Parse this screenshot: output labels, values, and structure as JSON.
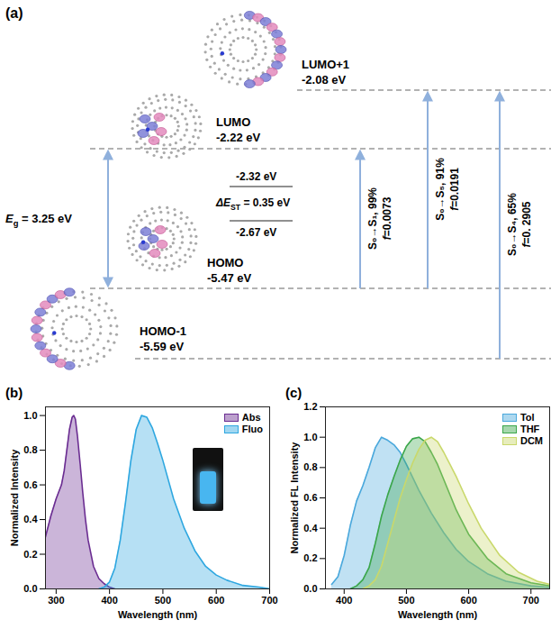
{
  "diagram": {
    "label": "(a)",
    "levels": [
      {
        "name": "LUMO+1",
        "energy": "-2.08 eV"
      },
      {
        "name": "LUMO",
        "energy": "-2.22 eV"
      },
      {
        "name": "HOMO",
        "energy": "-5.47 eV"
      },
      {
        "name": "HOMO-1",
        "energy": "-5.59 eV"
      }
    ],
    "gap": {
      "symbol": "E",
      "subscript": "g",
      "text": " = 3.25 eV"
    },
    "singlet_triplet": {
      "symbol": "ΔE",
      "subscript": "ST",
      "text": " = 0.35 eV",
      "upper": "-2.32 eV",
      "lower": "-2.67 eV"
    },
    "transitions": [
      {
        "from": "HOMO",
        "to": "LUMO",
        "label": "S₀→S₁, 99%",
        "strength": "f=0.0073"
      },
      {
        "from": "HOMO",
        "to": "LUMO+1",
        "label": "S₀→S₅, 91%",
        "strength": "f=0.0191"
      },
      {
        "from": "HOMO-1",
        "to": "LUMO+1",
        "label": "S₀→S₄, 65%",
        "strength": "f=0. 2905"
      }
    ]
  },
  "chart_data": [
    {
      "type": "area",
      "panel_label": "(b)",
      "x_label": "Wavelength (nm)",
      "y_label": "Normalized Intensity",
      "xlim": [
        280,
        700
      ],
      "xticks": [
        300,
        400,
        500,
        600,
        700
      ],
      "ylim": [
        0,
        1.05
      ],
      "yticks": [
        {
          "value": 0,
          "label": "0.0"
        },
        0.2,
        0.4,
        0.6,
        0.8,
        {
          "value": 1,
          "label": "1.0"
        }
      ],
      "legend": "top-right",
      "series": [
        {
          "name": "Abs",
          "color": "#6a2c91",
          "x": [
            280,
            290,
            300,
            305,
            310,
            315,
            320,
            325,
            330,
            333,
            336,
            340,
            345,
            350,
            355,
            360,
            370,
            380,
            390,
            400,
            410
          ],
          "values": [
            0.3,
            0.42,
            0.52,
            0.56,
            0.6,
            0.68,
            0.8,
            0.92,
            0.99,
            1.0,
            0.98,
            0.88,
            0.72,
            0.55,
            0.4,
            0.28,
            0.13,
            0.06,
            0.03,
            0.01,
            0.0
          ]
        },
        {
          "name": "Fluo",
          "color": "#2ea7e0",
          "x": [
            380,
            390,
            400,
            410,
            420,
            430,
            440,
            450,
            460,
            470,
            480,
            490,
            500,
            520,
            540,
            560,
            580,
            600,
            620,
            650,
            680,
            700
          ],
          "values": [
            0,
            0.01,
            0.04,
            0.12,
            0.28,
            0.5,
            0.74,
            0.92,
            1.0,
            0.99,
            0.93,
            0.84,
            0.74,
            0.52,
            0.35,
            0.22,
            0.13,
            0.08,
            0.05,
            0.02,
            0.01,
            0.0
          ]
        }
      ]
    },
    {
      "type": "area",
      "panel_label": "(c)",
      "x_label": "Wavelength (nm)",
      "y_label": "Normalized FL Intensity",
      "xlim": [
        370,
        730
      ],
      "xticks": [
        400,
        500,
        600,
        700
      ],
      "ylim": [
        0,
        1.2
      ],
      "yticks": [
        {
          "value": 0,
          "label": "0.0"
        },
        0.2,
        0.4,
        0.6,
        0.8,
        {
          "value": 1,
          "label": "1.0"
        },
        1.2
      ],
      "legend": "top-right",
      "series": [
        {
          "name": "Tol",
          "color": "#4aa8dc",
          "x": [
            380,
            390,
            400,
            410,
            420,
            430,
            440,
            450,
            460,
            470,
            480,
            490,
            500,
            520,
            540,
            560,
            580,
            600,
            630,
            660,
            700,
            730
          ],
          "values": [
            0.03,
            0.08,
            0.22,
            0.42,
            0.58,
            0.68,
            0.8,
            0.93,
            1.0,
            0.98,
            0.95,
            0.9,
            0.82,
            0.65,
            0.5,
            0.37,
            0.26,
            0.18,
            0.1,
            0.05,
            0.02,
            0.01
          ]
        },
        {
          "name": "THF",
          "color": "#3aa64a",
          "x": [
            410,
            420,
            430,
            440,
            450,
            460,
            470,
            480,
            490,
            500,
            510,
            520,
            530,
            540,
            550,
            560,
            580,
            600,
            630,
            660,
            700,
            730
          ],
          "values": [
            0,
            0.02,
            0.06,
            0.14,
            0.3,
            0.48,
            0.62,
            0.74,
            0.85,
            0.94,
            0.99,
            1.0,
            0.97,
            0.9,
            0.82,
            0.72,
            0.52,
            0.36,
            0.2,
            0.1,
            0.04,
            0.02
          ]
        },
        {
          "name": "DCM",
          "color": "#c9d86b",
          "x": [
            430,
            440,
            450,
            460,
            470,
            480,
            490,
            500,
            510,
            520,
            530,
            540,
            550,
            560,
            570,
            580,
            600,
            620,
            650,
            680,
            710,
            730
          ],
          "values": [
            0,
            0.02,
            0.06,
            0.15,
            0.3,
            0.45,
            0.6,
            0.72,
            0.83,
            0.92,
            0.98,
            1.0,
            0.97,
            0.9,
            0.82,
            0.74,
            0.56,
            0.4,
            0.22,
            0.11,
            0.05,
            0.03
          ]
        }
      ]
    }
  ]
}
